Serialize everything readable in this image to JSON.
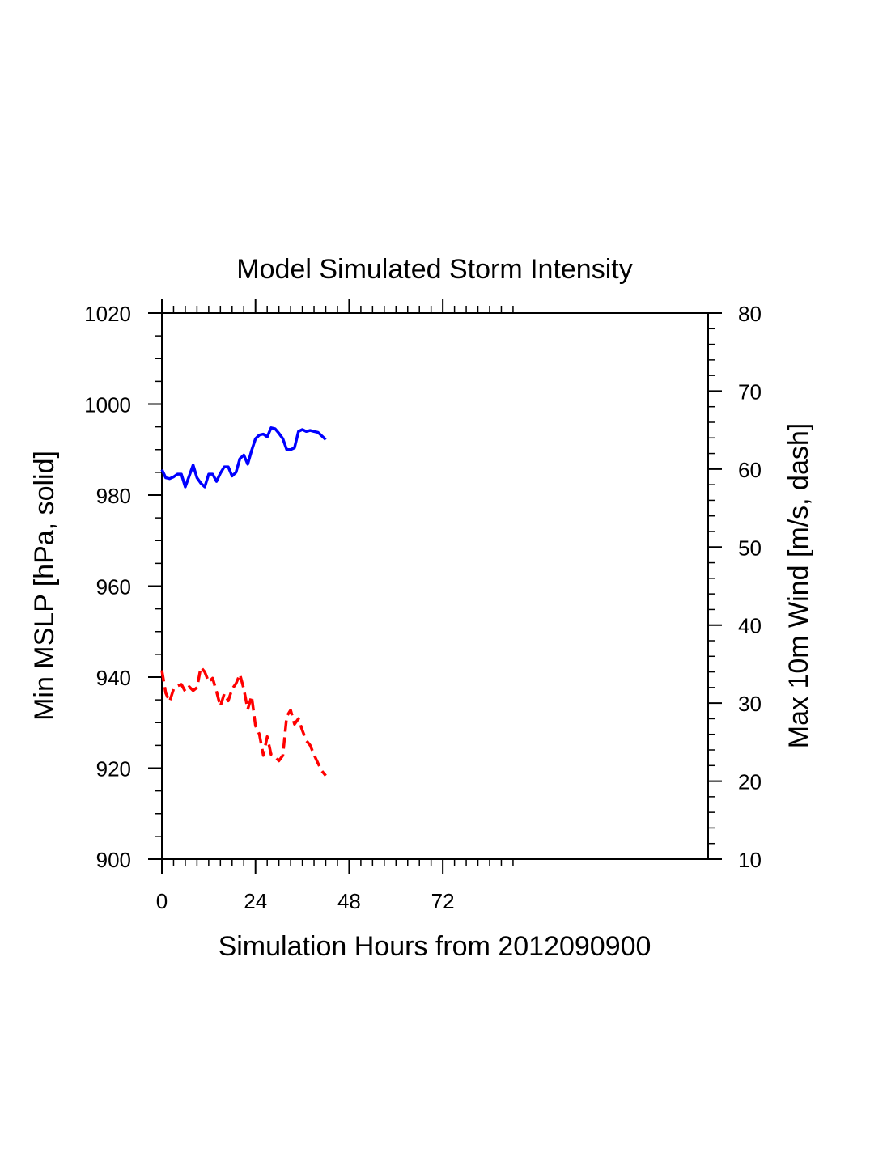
{
  "chart_data": {
    "type": "line",
    "title": "Model Simulated Storm Intensity",
    "xlabel": "Simulation Hours from 2012090900",
    "ylabel_left": "Min MSLP  [hPa, solid]",
    "ylabel_right": "Max 10m Wind  [m/s, dash]",
    "xlim": [
      0,
      140
    ],
    "ylim_left": [
      900,
      1020
    ],
    "ylim_right": [
      10,
      80
    ],
    "x_ticks": [
      0,
      24,
      48,
      72
    ],
    "y_ticks_left": [
      900,
      920,
      940,
      960,
      980,
      1000,
      1020
    ],
    "y_ticks_right": [
      10,
      20,
      30,
      40,
      50,
      60,
      70,
      80
    ],
    "grid": false,
    "series": [
      {
        "axis": "left",
        "style": "solid",
        "color": "#0000ff",
        "x": [
          0,
          1,
          2,
          3,
          4,
          5,
          6,
          7,
          8,
          9,
          10,
          11,
          12,
          13,
          14,
          15,
          16,
          17,
          18,
          19,
          20,
          21,
          22,
          23,
          24,
          25,
          26,
          27,
          28,
          29,
          30,
          31,
          32,
          33,
          34,
          35,
          36,
          37,
          38,
          39,
          40,
          41,
          42
        ],
        "y": [
          985.6,
          983.8,
          983.6,
          984.0,
          984.6,
          984.6,
          981.8,
          984.2,
          986.6,
          983.8,
          982.6,
          981.8,
          984.6,
          984.6,
          983.0,
          984.8,
          986.2,
          986.2,
          984.2,
          985.0,
          988.0,
          988.8,
          986.8,
          989.8,
          992.4,
          993.2,
          993.4,
          992.8,
          994.8,
          994.6,
          993.6,
          992.4,
          990.0,
          990.0,
          990.4,
          994.0,
          994.4,
          994.0,
          994.2,
          994.0,
          993.8,
          993.0,
          992.2
        ]
      },
      {
        "axis": "right",
        "style": "dashed",
        "color": "#ff0000",
        "x": [
          0,
          1,
          2,
          3,
          4,
          5,
          6,
          7,
          8,
          9,
          10,
          11,
          12,
          13,
          14,
          15,
          16,
          17,
          18,
          19,
          20,
          21,
          22,
          23,
          24,
          25,
          26,
          27,
          28,
          29,
          30,
          31,
          32,
          33,
          34,
          35,
          36,
          37,
          38,
          39,
          40,
          41,
          42
        ],
        "y": [
          34.2,
          31.3,
          30.2,
          31.8,
          32.2,
          32.4,
          31.5,
          32.1,
          31.6,
          32.0,
          34.6,
          34.0,
          32.7,
          33.2,
          31.5,
          29.6,
          31.2,
          30.3,
          31.8,
          32.5,
          33.7,
          31.8,
          29.2,
          30.9,
          27.1,
          26.0,
          23.3,
          25.7,
          23.4,
          23.2,
          22.6,
          23.3,
          28.3,
          29.1,
          27.3,
          28.0,
          26.5,
          25.2,
          24.6,
          23.4,
          22.3,
          21.3,
          20.7
        ]
      }
    ]
  }
}
